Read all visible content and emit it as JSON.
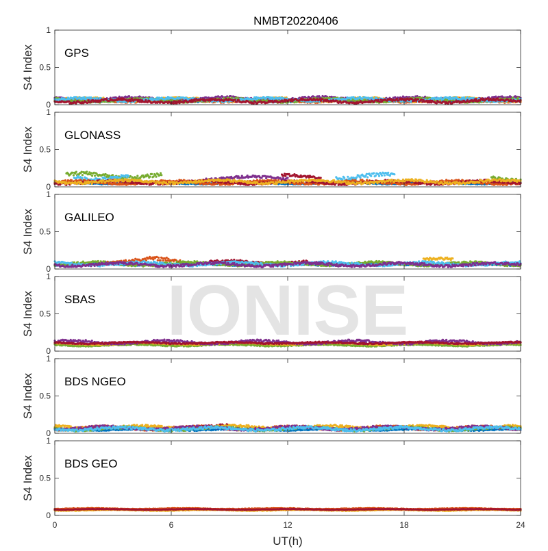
{
  "chart_data": {
    "type": "scatter",
    "title": "NMBT20220406",
    "watermark": "IONISE",
    "xlabel": "UT(h)",
    "ylabel": "S4 Index",
    "xlim": [
      0,
      24
    ],
    "ylim": [
      0,
      1
    ],
    "x_ticks": [
      0,
      6,
      12,
      18,
      24
    ],
    "y_ticks": [
      0,
      0.5,
      1
    ],
    "y_tick_labels": [
      "0",
      "0.5",
      "1"
    ],
    "grid": false,
    "colors": [
      "#0072BD",
      "#D95319",
      "#EDB120",
      "#7E2F8E",
      "#77AC30",
      "#4DBEEE",
      "#A2142F"
    ],
    "panels": [
      {
        "label": "GPS",
        "tracks": [
          {
            "color_index": 0,
            "start": 0.0,
            "end": 24.0,
            "base": 0.05,
            "amp": 0.01
          },
          {
            "color_index": 1,
            "start": 0.0,
            "end": 24.0,
            "base": 0.06,
            "amp": 0.02
          },
          {
            "color_index": 2,
            "start": 0.0,
            "end": 24.0,
            "base": 0.07,
            "amp": 0.02
          },
          {
            "color_index": 3,
            "start": 0.0,
            "end": 24.0,
            "base": 0.08,
            "amp": 0.02
          },
          {
            "color_index": 4,
            "start": 0.0,
            "end": 24.0,
            "base": 0.06,
            "amp": 0.02
          },
          {
            "color_index": 5,
            "start": 0.0,
            "end": 24.0,
            "base": 0.07,
            "amp": 0.02
          },
          {
            "color_index": 6,
            "start": 0.0,
            "end": 24.0,
            "base": 0.05,
            "amp": 0.02
          }
        ]
      },
      {
        "label": "GLONASS",
        "tracks": [
          {
            "color_index": 4,
            "start": 0.6,
            "end": 5.5,
            "base": 0.15,
            "amp": 0.03
          },
          {
            "color_index": 5,
            "start": 1.0,
            "end": 3.8,
            "base": 0.13,
            "amp": 0.03
          },
          {
            "color_index": 3,
            "start": 7.8,
            "end": 12.0,
            "base": 0.12,
            "amp": 0.02
          },
          {
            "color_index": 6,
            "start": 11.7,
            "end": 13.7,
            "base": 0.14,
            "amp": 0.02
          },
          {
            "color_index": 5,
            "start": 14.5,
            "end": 17.5,
            "base": 0.14,
            "amp": 0.03
          },
          {
            "color_index": 4,
            "start": 22.5,
            "end": 24.0,
            "base": 0.11,
            "amp": 0.03
          },
          {
            "color_index": 0,
            "start": 0.0,
            "end": 24.0,
            "base": 0.05,
            "amp": 0.01
          },
          {
            "color_index": 1,
            "start": 0.0,
            "end": 24.0,
            "base": 0.06,
            "amp": 0.02
          },
          {
            "color_index": 6,
            "start": 0.0,
            "end": 24.0,
            "base": 0.06,
            "amp": 0.02
          },
          {
            "color_index": 2,
            "start": 0.0,
            "end": 24.0,
            "base": 0.07,
            "amp": 0.02
          }
        ]
      },
      {
        "label": "GALILEO",
        "tracks": [
          {
            "color_index": 1,
            "start": 2.5,
            "end": 6.5,
            "base": 0.11,
            "amp": 0.03
          },
          {
            "color_index": 6,
            "start": 8.0,
            "end": 13.0,
            "base": 0.09,
            "amp": 0.02
          },
          {
            "color_index": 2,
            "start": 19.0,
            "end": 20.5,
            "base": 0.12,
            "amp": 0.02
          },
          {
            "color_index": 0,
            "start": 0.0,
            "end": 24.0,
            "base": 0.06,
            "amp": 0.01
          },
          {
            "color_index": 4,
            "start": 0.0,
            "end": 24.0,
            "base": 0.07,
            "amp": 0.02
          },
          {
            "color_index": 5,
            "start": 0.0,
            "end": 24.0,
            "base": 0.07,
            "amp": 0.02
          },
          {
            "color_index": 3,
            "start": 0.0,
            "end": 24.0,
            "base": 0.06,
            "amp": 0.02
          }
        ]
      },
      {
        "label": "SBAS",
        "tracks": [
          {
            "color_index": 4,
            "start": 0.0,
            "end": 24.0,
            "base": 0.08,
            "amp": 0.01
          },
          {
            "color_index": 2,
            "start": 0.0,
            "end": 24.0,
            "base": 0.1,
            "amp": 0.01
          },
          {
            "color_index": 3,
            "start": 0.0,
            "end": 24.0,
            "base": 0.12,
            "amp": 0.02
          },
          {
            "color_index": 6,
            "start": 0.0,
            "end": 24.0,
            "base": 0.11,
            "amp": 0.01
          }
        ]
      },
      {
        "label": "BDS NGEO",
        "tracks": [
          {
            "color_index": 1,
            "start": 0.0,
            "end": 24.0,
            "base": 0.07,
            "amp": 0.02
          },
          {
            "color_index": 6,
            "start": 6.0,
            "end": 9.0,
            "base": 0.09,
            "amp": 0.02
          },
          {
            "color_index": 2,
            "start": 0.0,
            "end": 24.0,
            "base": 0.08,
            "amp": 0.02
          },
          {
            "color_index": 0,
            "start": 0.0,
            "end": 24.0,
            "base": 0.05,
            "amp": 0.01
          },
          {
            "color_index": 4,
            "start": 0.0,
            "end": 24.0,
            "base": 0.06,
            "amp": 0.02
          },
          {
            "color_index": 3,
            "start": 0.0,
            "end": 24.0,
            "base": 0.07,
            "amp": 0.02
          },
          {
            "color_index": 5,
            "start": 0.0,
            "end": 24.0,
            "base": 0.06,
            "amp": 0.02
          }
        ]
      },
      {
        "label": "BDS GEO",
        "tracks": [
          {
            "color_index": 2,
            "start": 0.0,
            "end": 24.0,
            "base": 0.07,
            "amp": 0.005
          },
          {
            "color_index": 1,
            "start": 0.0,
            "end": 24.0,
            "base": 0.09,
            "amp": 0.005
          },
          {
            "color_index": 6,
            "start": 0.0,
            "end": 24.0,
            "base": 0.08,
            "amp": 0.005
          }
        ]
      }
    ]
  }
}
